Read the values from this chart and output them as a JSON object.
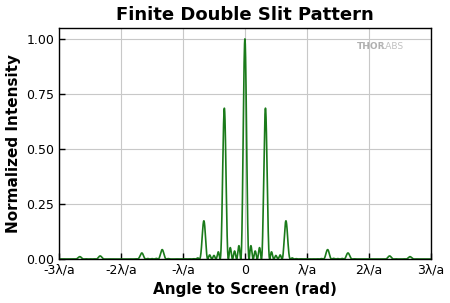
{
  "title": "Finite Double Slit Pattern",
  "xlabel": "Angle to Screen (rad)",
  "ylabel": "Normalized Intensity",
  "line_color": "#1a7a1a",
  "line_width": 1.2,
  "xlim": [
    -3.0,
    3.0
  ],
  "ylim": [
    0.0,
    1.05
  ],
  "yticks": [
    0.0,
    0.25,
    0.5,
    0.75,
    1.0
  ],
  "xtick_labels": [
    "-3λ/a",
    "-2λ/a",
    "-λ/a",
    "0",
    "λ/a",
    "2λ/a",
    "3λ/a"
  ],
  "xtick_positions": [
    -3,
    -2,
    -1,
    0,
    1,
    2,
    3
  ],
  "background_color": "#ffffff",
  "grid_color": "#c8c8c8",
  "title_fontsize": 13,
  "label_fontsize": 11,
  "tick_fontsize": 9,
  "d_over_a": 3.0,
  "N_slits": 5
}
